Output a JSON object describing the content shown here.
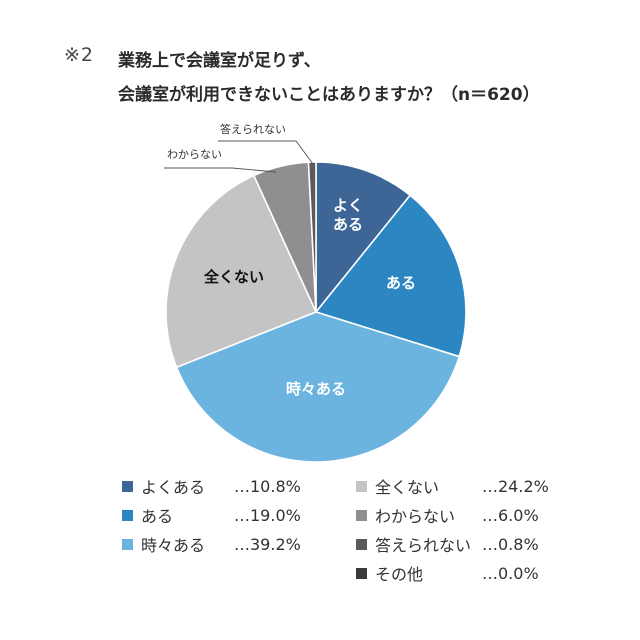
{
  "title": {
    "note": "※2",
    "line1": "業務上で会議室が足りず、",
    "line2": "会議室が利用できないことはありますか？（n＝620）"
  },
  "chart_data": {
    "type": "pie",
    "title": "業務上で会議室が足りず、会議室が利用できないことはありますか？（n＝620）",
    "start_angle_deg": 0,
    "direction": "clockwise",
    "slices": [
      {
        "label": "よくある",
        "inside_label": [
          "よく",
          "ある"
        ],
        "value": 10.8,
        "display": "…10.8%",
        "color": "#3d6596",
        "label_color": "#ffffff"
      },
      {
        "label": "ある",
        "inside_label": [
          "ある"
        ],
        "value": 19.0,
        "display": "…19.0%",
        "color": "#2c86c2",
        "label_color": "#ffffff"
      },
      {
        "label": "時々ある",
        "inside_label": [
          "時々ある"
        ],
        "value": 39.2,
        "display": "…39.2%",
        "color": "#6bb4e0",
        "label_color": "#ffffff"
      },
      {
        "label": "全くない",
        "inside_label": [
          "全くない"
        ],
        "value": 24.2,
        "display": "…24.2%",
        "color": "#c4c4c4",
        "label_color": "#111111"
      },
      {
        "label": "わからない",
        "callout": "わからない",
        "value": 6.0,
        "display": "…6.0%",
        "color": "#8f8f8f"
      },
      {
        "label": "答えられない",
        "callout": "答えられない",
        "value": 0.8,
        "display": "…0.8%",
        "color": "#5a5a5a"
      },
      {
        "label": "その他",
        "value": 0.0,
        "display": "…0.0%",
        "color": "#3a3a3a"
      }
    ],
    "legend_position": "bottom"
  }
}
